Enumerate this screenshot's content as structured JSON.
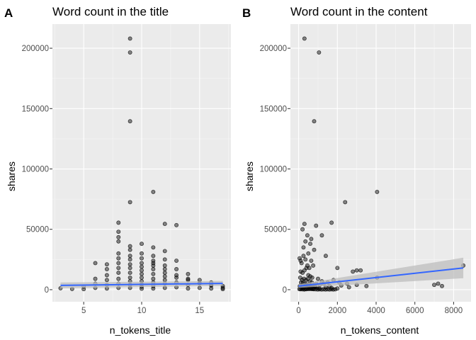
{
  "chart_data": [
    {
      "id": "panelA",
      "type": "scatter",
      "tag": "A",
      "title": "Word count in the title",
      "xlabel": "n_tokens_title",
      "ylabel": "shares",
      "xlim": [
        2.3,
        17.7
      ],
      "ylim": [
        -10000,
        220000
      ],
      "xticks": [
        5,
        10,
        15
      ],
      "xtick_labels": [
        "5",
        "10",
        "15"
      ],
      "yticks": [
        0,
        50000,
        100000,
        150000,
        200000
      ],
      "ytick_labels": [
        "0",
        "50000",
        "100000",
        "150000",
        "200000"
      ],
      "grid": true,
      "trend": {
        "x": [
          3,
          17
        ],
        "y": [
          3600,
          5200
        ],
        "ci_low": [
          1200,
          3200
        ],
        "ci_high": [
          6000,
          7200
        ]
      },
      "points": {
        "x": [
          9,
          9,
          9,
          11,
          9,
          8,
          12,
          13,
          8,
          8,
          8,
          10,
          11,
          12,
          9,
          9,
          10,
          10,
          11,
          11,
          12,
          13,
          6,
          7,
          7,
          8,
          8,
          8,
          9,
          9,
          9,
          10,
          10,
          10,
          11,
          11,
          11,
          12,
          12,
          12,
          13,
          13,
          14,
          14,
          15,
          15,
          16,
          16,
          17,
          17,
          3,
          4,
          5,
          5,
          6,
          6,
          6,
          7,
          7,
          7,
          7,
          8,
          8,
          8,
          8,
          8,
          9,
          9,
          9,
          9,
          9,
          9,
          10,
          10,
          10,
          10,
          10,
          10,
          11,
          11,
          11,
          11,
          11,
          12,
          12,
          12,
          12,
          13,
          13,
          13,
          14,
          14,
          14,
          15,
          15,
          16,
          16,
          17
        ],
        "y": [
          208000,
          196500,
          139500,
          81000,
          72500,
          55500,
          54500,
          53500,
          48000,
          43500,
          40000,
          38000,
          35000,
          32000,
          36000,
          33000,
          30000,
          26000,
          28000,
          24000,
          25000,
          24000,
          22000,
          21000,
          17000,
          30000,
          26000,
          22000,
          28000,
          25000,
          21000,
          22000,
          19000,
          16000,
          22000,
          20000,
          17000,
          20000,
          17000,
          14000,
          17000,
          12000,
          13000,
          9000,
          8000,
          5500,
          6000,
          3500,
          3000,
          1500,
          1200,
          600,
          2500,
          500,
          9000,
          5000,
          1500,
          12000,
          8000,
          4000,
          1000,
          18000,
          14000,
          9000,
          5000,
          1500,
          18000,
          14000,
          10000,
          7000,
          4000,
          1500,
          13000,
          10000,
          7000,
          4500,
          2500,
          800,
          13000,
          9000,
          6000,
          3000,
          1000,
          11000,
          8000,
          5000,
          1500,
          10000,
          6000,
          2000,
          8000,
          4000,
          1000,
          5000,
          1500,
          4000,
          1000,
          500
        ]
      }
    },
    {
      "id": "panelB",
      "type": "scatter",
      "tag": "B",
      "title": "Word count in the content",
      "xlabel": "n_tokens_content",
      "ylabel": "shares",
      "xlim": [
        -425,
        8900
      ],
      "ylim": [
        -10000,
        220000
      ],
      "xticks": [
        0,
        2000,
        4000,
        6000,
        8000
      ],
      "xtick_labels": [
        "0",
        "2000",
        "4000",
        "6000",
        "8000"
      ],
      "yticks": [
        0,
        50000,
        100000,
        150000,
        200000
      ],
      "ytick_labels": [
        "0",
        "50000",
        "100000",
        "150000",
        "200000"
      ],
      "grid": true,
      "trend": {
        "x": [
          0,
          8500
        ],
        "y": [
          3000,
          18000
        ],
        "ci_low": [
          1500,
          9500
        ],
        "ci_high": [
          4500,
          26500
        ]
      },
      "points": {
        "x": [
          300,
          1050,
          800,
          4050,
          2400,
          1700,
          300,
          200,
          900,
          450,
          650,
          1200,
          350,
          600,
          250,
          800,
          1400,
          500,
          100,
          2000,
          3000,
          2800,
          3200,
          8500,
          7200,
          7000,
          7400,
          4050,
          2100,
          2500,
          3000,
          3500,
          1800,
          2600,
          50,
          150,
          250,
          350,
          450,
          550,
          650,
          750,
          100,
          200,
          300,
          400,
          500,
          600,
          700,
          80,
          180,
          280,
          380,
          480,
          580,
          680,
          1000,
          1200,
          1500,
          900,
          1100,
          1300,
          1600,
          2200,
          120,
          220,
          320,
          420,
          520,
          620,
          720,
          820,
          60,
          160,
          260,
          360,
          460,
          560,
          660,
          760,
          860,
          960,
          1060,
          1400,
          1700,
          2000,
          140,
          240,
          340,
          440,
          540,
          640,
          740,
          40,
          90,
          190,
          290,
          390,
          490,
          590,
          690,
          790,
          890,
          990,
          1090,
          1190,
          1290,
          1390,
          1490,
          1590,
          1690,
          1790,
          1890
        ],
        "y": [
          208000,
          196500,
          139500,
          81000,
          72500,
          55500,
          54500,
          50000,
          53000,
          45000,
          42000,
          45000,
          40000,
          38000,
          35000,
          33000,
          28000,
          30000,
          24000,
          18000,
          16000,
          15000,
          16000,
          20000,
          5000,
          4000,
          3000,
          10000,
          6000,
          5000,
          4000,
          3000,
          8000,
          2000,
          26000,
          22000,
          28000,
          25000,
          20000,
          18000,
          24000,
          20000,
          15000,
          14000,
          16000,
          18000,
          12000,
          11000,
          10000,
          10000,
          8000,
          9000,
          8000,
          9000,
          7000,
          6000,
          9000,
          7000,
          6000,
          5000,
          4000,
          5000,
          3000,
          3500,
          6000,
          5500,
          5000,
          4500,
          4000,
          3500,
          3000,
          2500,
          3000,
          2500,
          2000,
          3500,
          3000,
          2500,
          2000,
          1500,
          2000,
          1500,
          1000,
          2000,
          1500,
          1000,
          1000,
          800,
          600,
          1200,
          1000,
          900,
          700,
          500,
          400,
          300,
          200,
          400,
          500,
          600,
          500,
          400,
          300,
          200,
          300,
          200,
          300,
          200,
          300,
          200,
          300,
          200,
          300
        ]
      }
    }
  ]
}
